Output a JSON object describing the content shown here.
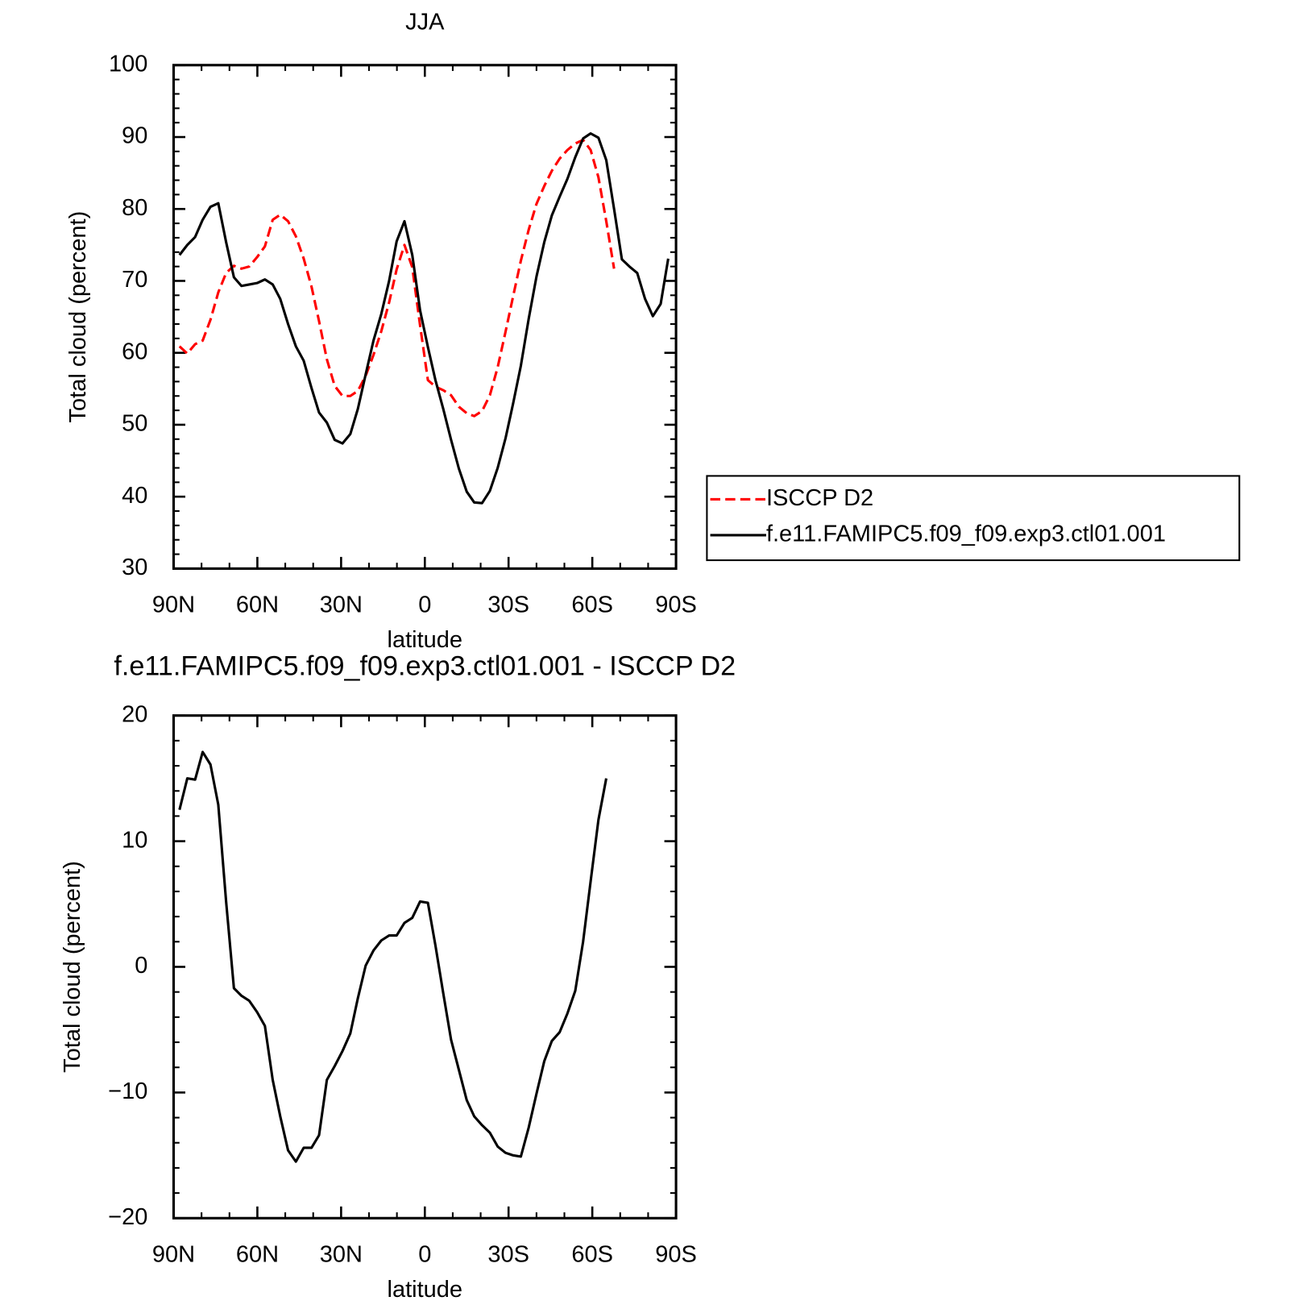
{
  "chart_data": [
    {
      "type": "line",
      "title": "JJA",
      "xlabel": "latitude",
      "ylabel": "Total cloud (percent)",
      "xlim": [
        90,
        -90
      ],
      "xticks": [
        {
          "value": 90,
          "label": "90N"
        },
        {
          "value": 60,
          "label": "60N"
        },
        {
          "value": 30,
          "label": "30N"
        },
        0,
        {
          "value": -30,
          "label": "30S"
        },
        {
          "value": -60,
          "label": "60S"
        },
        {
          "value": -90,
          "label": "90S"
        }
      ],
      "ylim": [
        30,
        100
      ],
      "yticks": [
        30,
        40,
        50,
        60,
        70,
        80,
        90,
        100
      ],
      "legend": "right",
      "x": [
        87.9,
        85.1,
        82.3,
        79.6,
        76.8,
        74.0,
        71.2,
        68.4,
        65.7,
        62.9,
        60.1,
        57.3,
        54.5,
        51.8,
        49.0,
        46.2,
        43.4,
        40.6,
        37.9,
        35.1,
        32.3,
        29.5,
        26.7,
        24.0,
        21.2,
        18.4,
        15.6,
        12.8,
        10.1,
        7.3,
        4.5,
        1.7,
        -1.1,
        -3.8,
        -6.6,
        -9.4,
        -12.2,
        -15.0,
        -17.7,
        -20.5,
        -23.3,
        -26.1,
        -28.9,
        -31.6,
        -34.4,
        -37.2,
        -40.0,
        -42.8,
        -45.5,
        -48.3,
        -51.1,
        -53.9,
        -56.7,
        -59.4,
        -62.2,
        -65.0,
        -67.8,
        -70.6,
        -73.3,
        -76.1,
        -78.9,
        -81.7,
        -84.5,
        -87.2
      ],
      "series": [
        {
          "name": "ISCCP D2",
          "color": "#ff0000",
          "dash": true,
          "values": [
            60.9,
            59.9,
            61.2,
            61.7,
            64.6,
            68.4,
            71.1,
            72.1,
            71.7,
            72.0,
            73.3,
            74.8,
            78.5,
            79.2,
            78.3,
            76.2,
            73.1,
            69.2,
            64.4,
            59.1,
            55.4,
            54.0,
            54.0,
            54.7,
            56.8,
            59.7,
            63.0,
            67.0,
            71.6,
            75.0,
            71.9,
            63.8,
            56.2,
            55.3,
            54.8,
            54.1,
            52.5,
            51.6,
            51.2,
            51.9,
            54.1,
            58.0,
            62.9,
            67.8,
            72.8,
            77.1,
            80.7,
            83.2,
            85.3,
            87.0,
            88.2,
            89.1,
            89.6,
            88.2,
            84.4,
            78.3,
            71.7,
            null,
            null,
            null,
            null,
            null,
            null,
            null
          ]
        },
        {
          "name": "f.e11.FAMIPC5.f09_f09.exp3.ctl01.001",
          "color": "#000000",
          "dash": false,
          "values": [
            73.6,
            75.0,
            76.1,
            78.5,
            80.3,
            80.8,
            75.4,
            70.5,
            69.3,
            69.5,
            69.7,
            70.2,
            69.5,
            67.5,
            64.0,
            60.9,
            58.9,
            55.1,
            51.7,
            50.3,
            47.9,
            47.4,
            48.7,
            52.2,
            57.0,
            61.7,
            65.4,
            70.0,
            75.5,
            78.3,
            73.6,
            65.9,
            60.8,
            56.2,
            52.2,
            47.9,
            43.9,
            40.7,
            39.2,
            39.1,
            40.8,
            44.0,
            48.1,
            52.9,
            58.2,
            64.7,
            70.6,
            75.4,
            79.1,
            81.7,
            84.2,
            87.2,
            89.8,
            90.5,
            89.9,
            86.8,
            80.0,
            73.0,
            72.0,
            71.1,
            67.5,
            65.1,
            66.8,
            73.1
          ]
        }
      ]
    },
    {
      "type": "line",
      "title": "f.e11.FAMIPC5.f09_f09.exp3.ctl01.001 - ISCCP D2",
      "xlabel": "latitude",
      "ylabel": "Total cloud (percent)",
      "xlim": [
        90,
        -90
      ],
      "xticks": [
        {
          "value": 90,
          "label": "90N"
        },
        {
          "value": 60,
          "label": "60N"
        },
        {
          "value": 30,
          "label": "30N"
        },
        0,
        {
          "value": -30,
          "label": "30S"
        },
        {
          "value": -60,
          "label": "60S"
        },
        {
          "value": -90,
          "label": "90S"
        }
      ],
      "ylim": [
        -20,
        20
      ],
      "yticks": [
        {
          "value": -20,
          "label": "−20"
        },
        {
          "value": -10,
          "label": "−10"
        },
        0,
        10,
        20
      ],
      "color": "#000000",
      "x": [
        87.9,
        85.1,
        82.3,
        79.6,
        76.8,
        74.0,
        71.2,
        68.4,
        65.7,
        62.9,
        60.1,
        57.3,
        54.5,
        51.8,
        49.0,
        46.2,
        43.4,
        40.6,
        37.9,
        35.1,
        32.3,
        29.5,
        26.7,
        24.0,
        21.2,
        18.4,
        15.6,
        12.8,
        10.1,
        7.3,
        4.5,
        1.7,
        -1.1,
        -3.8,
        -6.6,
        -9.4,
        -12.2,
        -15.0,
        -17.7,
        -20.5,
        -23.3,
        -26.1,
        -28.9,
        -31.6,
        -34.4,
        -37.2,
        -40.0,
        -42.8,
        -45.5,
        -48.3,
        -51.1,
        -53.9,
        -56.7,
        -59.4,
        -62.2,
        -65.0
      ],
      "values": [
        12.5,
        15.0,
        14.9,
        17.1,
        16.1,
        12.9,
        5.2,
        -1.7,
        -2.3,
        -2.7,
        -3.6,
        -4.7,
        -9.0,
        -11.9,
        -14.6,
        -15.5,
        -14.4,
        -14.4,
        -13.4,
        -9.0,
        -7.9,
        -6.7,
        -5.3,
        -2.5,
        0.1,
        1.3,
        2.1,
        2.5,
        2.5,
        3.5,
        3.9,
        5.2,
        5.1,
        1.7,
        -2.1,
        -5.8,
        -8.2,
        -10.6,
        -11.9,
        -12.6,
        -13.2,
        -14.3,
        -14.8,
        -15.0,
        -15.1,
        -12.8,
        -10.1,
        -7.5,
        -5.9,
        -5.2,
        -3.7,
        -1.9,
        2.0,
        6.8,
        11.7,
        15.0
      ]
    }
  ]
}
